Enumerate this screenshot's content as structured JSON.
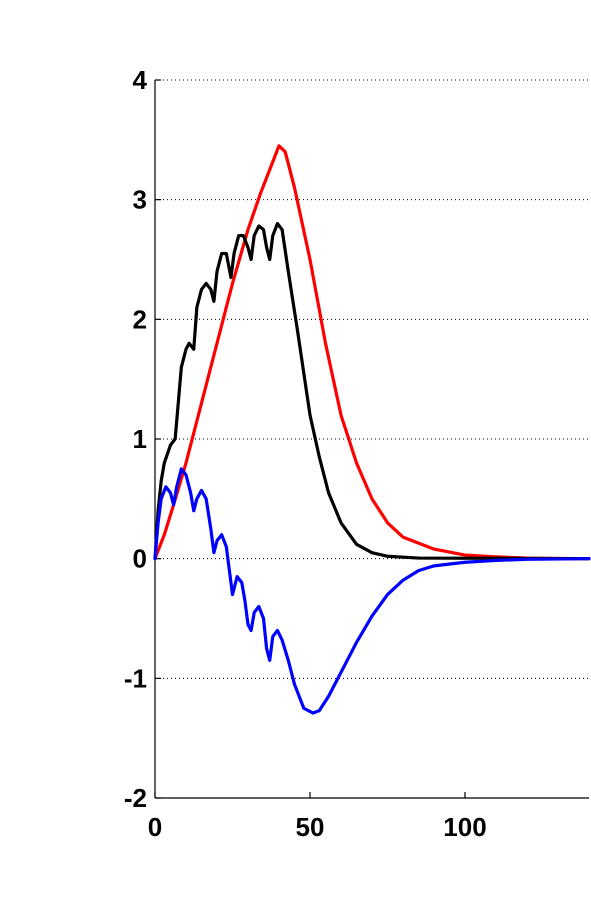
{
  "chart_data": {
    "type": "line",
    "title": "",
    "xlabel": "",
    "ylabel": "",
    "xlim": [
      0,
      140
    ],
    "ylim": [
      -2,
      4
    ],
    "x_ticks": [
      0,
      50,
      100
    ],
    "y_ticks": [
      -2,
      -1,
      0,
      1,
      2,
      3,
      4
    ],
    "grid": "horizontal-dotted",
    "legend": "none",
    "series": [
      {
        "color": "#ff0000",
        "points": [
          [
            0,
            0
          ],
          [
            3,
            0.2
          ],
          [
            6,
            0.45
          ],
          [
            10,
            0.8
          ],
          [
            15,
            1.3
          ],
          [
            20,
            1.8
          ],
          [
            25,
            2.3
          ],
          [
            30,
            2.75
          ],
          [
            34,
            3.05
          ],
          [
            37,
            3.25
          ],
          [
            40,
            3.45
          ],
          [
            42,
            3.4
          ],
          [
            45,
            3.1
          ],
          [
            50,
            2.5
          ],
          [
            55,
            1.8
          ],
          [
            60,
            1.2
          ],
          [
            65,
            0.8
          ],
          [
            70,
            0.5
          ],
          [
            75,
            0.3
          ],
          [
            80,
            0.18
          ],
          [
            90,
            0.08
          ],
          [
            100,
            0.03
          ],
          [
            110,
            0.015
          ],
          [
            120,
            0.005
          ],
          [
            140,
            0
          ]
        ]
      },
      {
        "color": "#000000",
        "points": [
          [
            0,
            0
          ],
          [
            1,
            0.4
          ],
          [
            2,
            0.65
          ],
          [
            3,
            0.8
          ],
          [
            5,
            0.95
          ],
          [
            6.5,
            1.0
          ],
          [
            7.5,
            1.3
          ],
          [
            8.5,
            1.6
          ],
          [
            10,
            1.75
          ],
          [
            11,
            1.8
          ],
          [
            12.5,
            1.75
          ],
          [
            13.5,
            2.1
          ],
          [
            15,
            2.25
          ],
          [
            16.5,
            2.3
          ],
          [
            18,
            2.25
          ],
          [
            19,
            2.15
          ],
          [
            20,
            2.4
          ],
          [
            21.5,
            2.55
          ],
          [
            23,
            2.55
          ],
          [
            24.5,
            2.35
          ],
          [
            25.5,
            2.55
          ],
          [
            27,
            2.7
          ],
          [
            28.5,
            2.7
          ],
          [
            30,
            2.6
          ],
          [
            31,
            2.5
          ],
          [
            32,
            2.7
          ],
          [
            33.5,
            2.78
          ],
          [
            35,
            2.75
          ],
          [
            36,
            2.6
          ],
          [
            37,
            2.5
          ],
          [
            38,
            2.7
          ],
          [
            39.5,
            2.8
          ],
          [
            41,
            2.75
          ],
          [
            43,
            2.4
          ],
          [
            46,
            1.9
          ],
          [
            50,
            1.2
          ],
          [
            53,
            0.85
          ],
          [
            56,
            0.55
          ],
          [
            60,
            0.3
          ],
          [
            65,
            0.12
          ],
          [
            70,
            0.05
          ],
          [
            75,
            0.02
          ],
          [
            85,
            0.005
          ],
          [
            140,
            0
          ]
        ]
      },
      {
        "color": "#0000ff",
        "points": [
          [
            0,
            0
          ],
          [
            1,
            0.3
          ],
          [
            2,
            0.5
          ],
          [
            3.5,
            0.6
          ],
          [
            5,
            0.55
          ],
          [
            6,
            0.45
          ],
          [
            7,
            0.6
          ],
          [
            8.5,
            0.75
          ],
          [
            10,
            0.7
          ],
          [
            11.5,
            0.55
          ],
          [
            12.5,
            0.4
          ],
          [
            13.5,
            0.5
          ],
          [
            15,
            0.57
          ],
          [
            16.5,
            0.5
          ],
          [
            18,
            0.25
          ],
          [
            19,
            0.05
          ],
          [
            20,
            0.15
          ],
          [
            21.5,
            0.2
          ],
          [
            23,
            0.1
          ],
          [
            24,
            -0.1
          ],
          [
            25,
            -0.3
          ],
          [
            26.5,
            -0.15
          ],
          [
            28,
            -0.2
          ],
          [
            29,
            -0.35
          ],
          [
            30,
            -0.55
          ],
          [
            31,
            -0.6
          ],
          [
            32,
            -0.45
          ],
          [
            33.5,
            -0.4
          ],
          [
            35,
            -0.5
          ],
          [
            36,
            -0.75
          ],
          [
            37,
            -0.85
          ],
          [
            38,
            -0.65
          ],
          [
            39.5,
            -0.6
          ],
          [
            41,
            -0.68
          ],
          [
            43,
            -0.85
          ],
          [
            45,
            -1.05
          ],
          [
            48,
            -1.25
          ],
          [
            51,
            -1.29
          ],
          [
            53,
            -1.27
          ],
          [
            56,
            -1.15
          ],
          [
            60,
            -0.95
          ],
          [
            65,
            -0.7
          ],
          [
            70,
            -0.48
          ],
          [
            75,
            -0.3
          ],
          [
            80,
            -0.18
          ],
          [
            85,
            -0.1
          ],
          [
            90,
            -0.06
          ],
          [
            100,
            -0.03
          ],
          [
            110,
            -0.015
          ],
          [
            120,
            -0.005
          ],
          [
            140,
            0
          ]
        ]
      }
    ]
  }
}
